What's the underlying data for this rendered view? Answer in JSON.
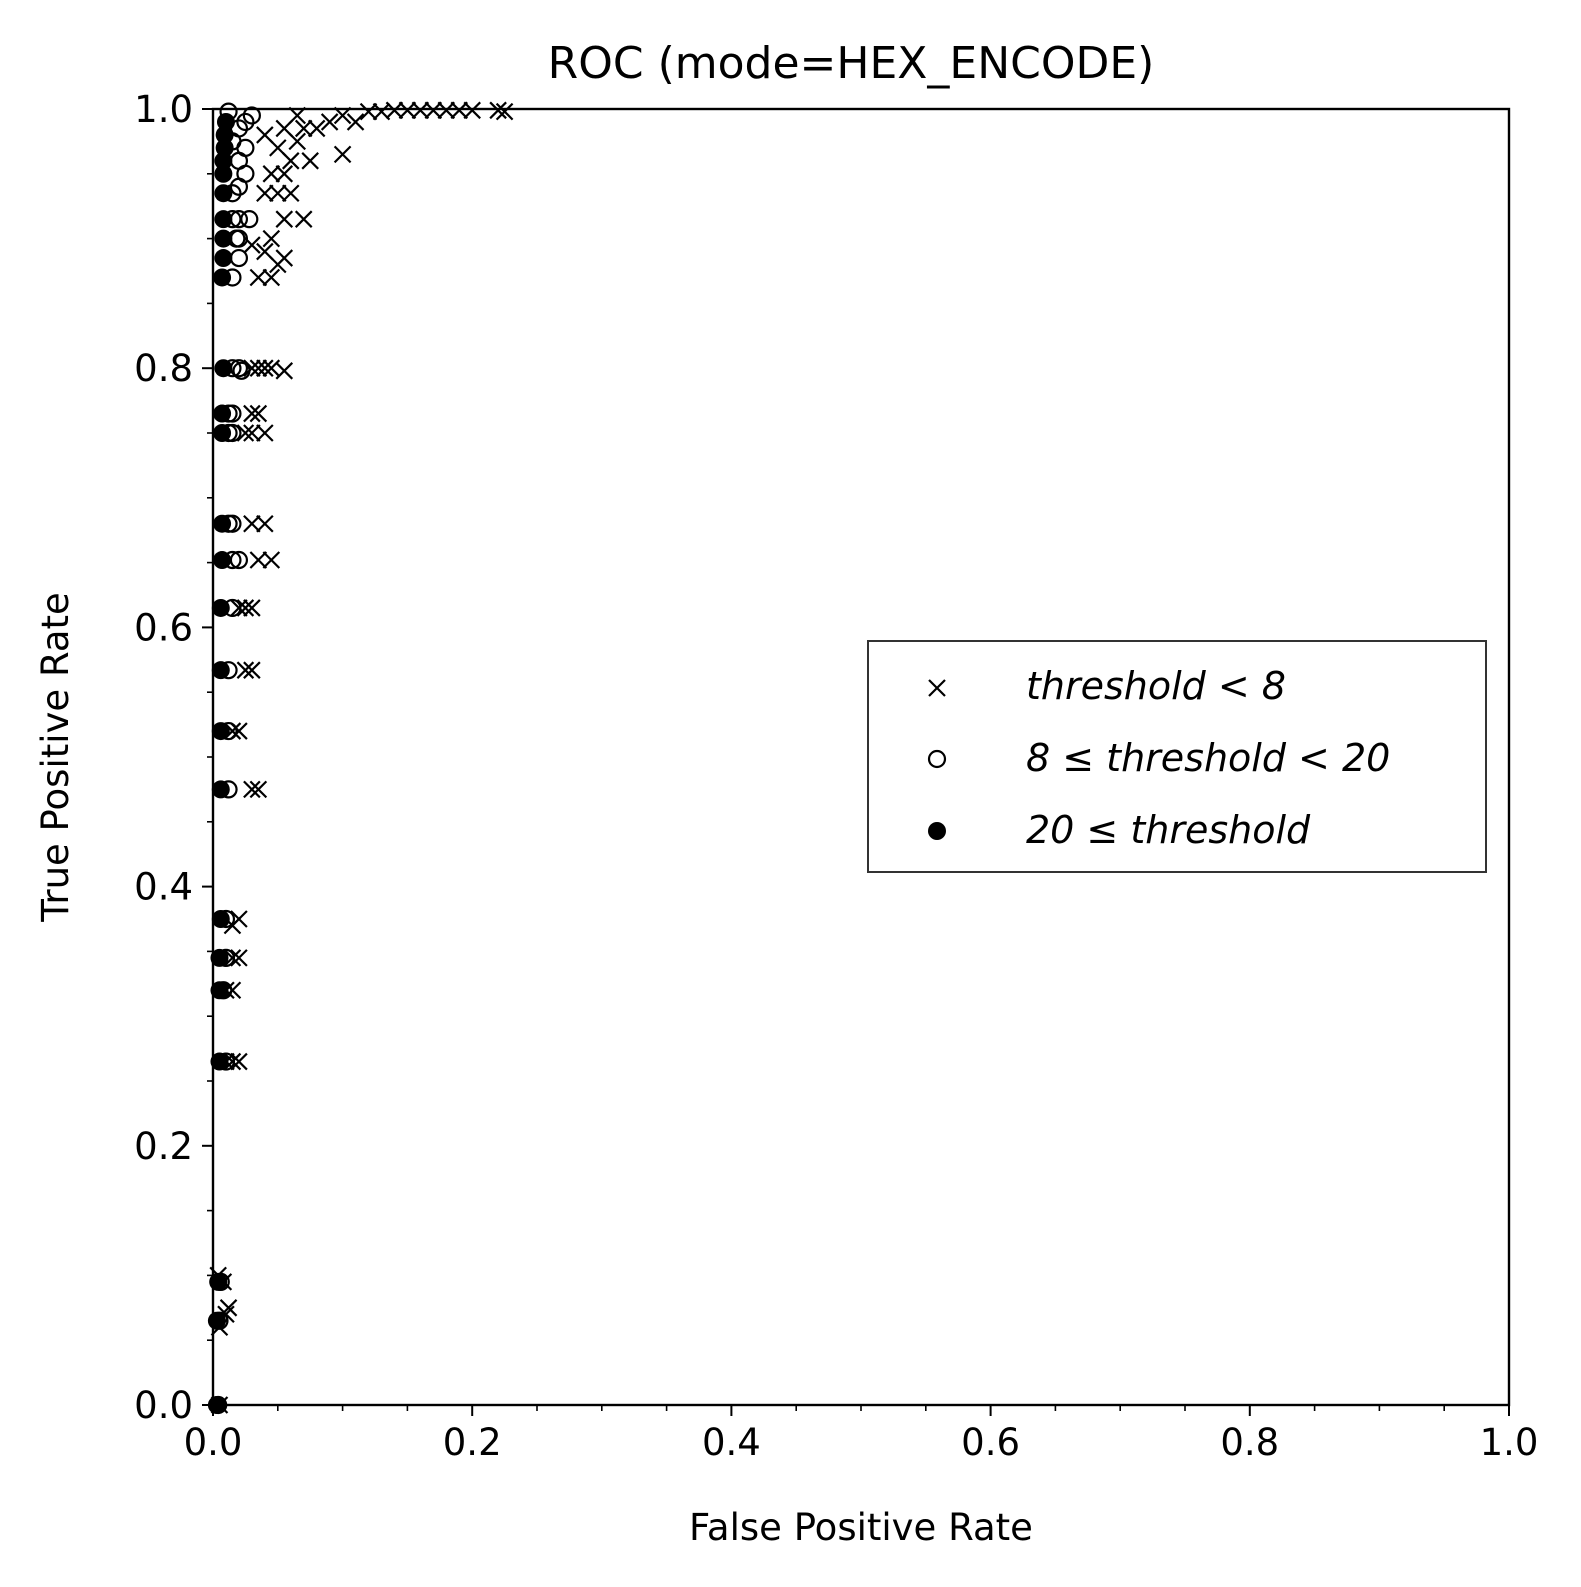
{
  "chart_data": {
    "type": "scatter",
    "title": "ROC (mode=HEX_ENCODE)",
    "xlabel": "False Positive Rate",
    "ylabel": "True Positive Rate",
    "xlim": [
      0.0,
      1.0
    ],
    "ylim": [
      0.0,
      1.0
    ],
    "xticks": [
      "0.0",
      "0.2",
      "0.4",
      "0.6",
      "0.8",
      "1.0"
    ],
    "yticks": [
      "0.0",
      "0.2",
      "0.4",
      "0.6",
      "0.8",
      "1.0"
    ],
    "grid": false,
    "legend_position": "center-right",
    "series": [
      {
        "name": "threshold < 8",
        "marker": "x",
        "points": [
          [
            0.005,
            0.0
          ],
          [
            0.005,
            0.06
          ],
          [
            0.01,
            0.07
          ],
          [
            0.012,
            0.075
          ],
          [
            0.008,
            0.095
          ],
          [
            0.004,
            0.1
          ],
          [
            0.02,
            0.265
          ],
          [
            0.015,
            0.265
          ],
          [
            0.01,
            0.265
          ],
          [
            0.015,
            0.32
          ],
          [
            0.01,
            0.32
          ],
          [
            0.02,
            0.345
          ],
          [
            0.015,
            0.345
          ],
          [
            0.02,
            0.375
          ],
          [
            0.015,
            0.37
          ],
          [
            0.03,
            0.475
          ],
          [
            0.035,
            0.475
          ],
          [
            0.02,
            0.52
          ],
          [
            0.015,
            0.52
          ],
          [
            0.03,
            0.567
          ],
          [
            0.025,
            0.567
          ],
          [
            0.025,
            0.615
          ],
          [
            0.03,
            0.615
          ],
          [
            0.02,
            0.615
          ],
          [
            0.035,
            0.652
          ],
          [
            0.045,
            0.652
          ],
          [
            0.03,
            0.68
          ],
          [
            0.04,
            0.68
          ],
          [
            0.03,
            0.765
          ],
          [
            0.035,
            0.765
          ],
          [
            0.04,
            0.75
          ],
          [
            0.03,
            0.75
          ],
          [
            0.025,
            0.75
          ],
          [
            0.035,
            0.8
          ],
          [
            0.04,
            0.8
          ],
          [
            0.045,
            0.8
          ],
          [
            0.055,
            0.798
          ],
          [
            0.03,
            0.8
          ],
          [
            0.035,
            0.87
          ],
          [
            0.045,
            0.87
          ],
          [
            0.05,
            0.88
          ],
          [
            0.055,
            0.885
          ],
          [
            0.04,
            0.89
          ],
          [
            0.03,
            0.895
          ],
          [
            0.045,
            0.9
          ],
          [
            0.055,
            0.915
          ],
          [
            0.07,
            0.915
          ],
          [
            0.04,
            0.935
          ],
          [
            0.05,
            0.935
          ],
          [
            0.06,
            0.935
          ],
          [
            0.045,
            0.95
          ],
          [
            0.055,
            0.95
          ],
          [
            0.06,
            0.96
          ],
          [
            0.075,
            0.96
          ],
          [
            0.1,
            0.965
          ],
          [
            0.05,
            0.97
          ],
          [
            0.065,
            0.975
          ],
          [
            0.04,
            0.98
          ],
          [
            0.055,
            0.985
          ],
          [
            0.07,
            0.985
          ],
          [
            0.08,
            0.985
          ],
          [
            0.09,
            0.99
          ],
          [
            0.11,
            0.99
          ],
          [
            0.065,
            0.995
          ],
          [
            0.1,
            0.995
          ],
          [
            0.12,
            0.998
          ],
          [
            0.13,
            0.998
          ],
          [
            0.14,
            0.999
          ],
          [
            0.15,
            0.999
          ],
          [
            0.16,
            0.999
          ],
          [
            0.17,
            0.999
          ],
          [
            0.18,
            0.999
          ],
          [
            0.19,
            0.999
          ],
          [
            0.2,
            0.999
          ],
          [
            0.22,
            0.999
          ],
          [
            0.225,
            0.998
          ]
        ]
      },
      {
        "name": "8 ≤ threshold < 20",
        "marker": "o",
        "points": [
          [
            0.004,
            0.0
          ],
          [
            0.005,
            0.065
          ],
          [
            0.006,
            0.095
          ],
          [
            0.01,
            0.265
          ],
          [
            0.008,
            0.32
          ],
          [
            0.01,
            0.345
          ],
          [
            0.01,
            0.375
          ],
          [
            0.012,
            0.475
          ],
          [
            0.012,
            0.52
          ],
          [
            0.012,
            0.567
          ],
          [
            0.015,
            0.615
          ],
          [
            0.015,
            0.652
          ],
          [
            0.02,
            0.652
          ],
          [
            0.012,
            0.68
          ],
          [
            0.015,
            0.68
          ],
          [
            0.012,
            0.765
          ],
          [
            0.015,
            0.765
          ],
          [
            0.015,
            0.75
          ],
          [
            0.012,
            0.75
          ],
          [
            0.015,
            0.8
          ],
          [
            0.02,
            0.8
          ],
          [
            0.022,
            0.798
          ],
          [
            0.015,
            0.87
          ],
          [
            0.02,
            0.885
          ],
          [
            0.018,
            0.9
          ],
          [
            0.02,
            0.9
          ],
          [
            0.015,
            0.915
          ],
          [
            0.02,
            0.915
          ],
          [
            0.028,
            0.915
          ],
          [
            0.015,
            0.935
          ],
          [
            0.02,
            0.94
          ],
          [
            0.025,
            0.95
          ],
          [
            0.02,
            0.96
          ],
          [
            0.025,
            0.97
          ],
          [
            0.015,
            0.975
          ],
          [
            0.02,
            0.985
          ],
          [
            0.025,
            0.99
          ],
          [
            0.03,
            0.995
          ],
          [
            0.012,
            0.998
          ]
        ]
      },
      {
        "name": "20 ≤ threshold",
        "marker": "filled",
        "points": [
          [
            0.003,
            0.0
          ],
          [
            0.003,
            0.065
          ],
          [
            0.004,
            0.095
          ],
          [
            0.005,
            0.265
          ],
          [
            0.005,
            0.32
          ],
          [
            0.005,
            0.345
          ],
          [
            0.006,
            0.375
          ],
          [
            0.006,
            0.475
          ],
          [
            0.006,
            0.52
          ],
          [
            0.006,
            0.567
          ],
          [
            0.006,
            0.615
          ],
          [
            0.007,
            0.652
          ],
          [
            0.007,
            0.68
          ],
          [
            0.007,
            0.765
          ],
          [
            0.007,
            0.75
          ],
          [
            0.008,
            0.8
          ],
          [
            0.007,
            0.87
          ],
          [
            0.008,
            0.885
          ],
          [
            0.008,
            0.9
          ],
          [
            0.008,
            0.915
          ],
          [
            0.008,
            0.935
          ],
          [
            0.008,
            0.95
          ],
          [
            0.008,
            0.96
          ],
          [
            0.009,
            0.97
          ],
          [
            0.009,
            0.98
          ],
          [
            0.01,
            0.99
          ]
        ]
      }
    ]
  }
}
